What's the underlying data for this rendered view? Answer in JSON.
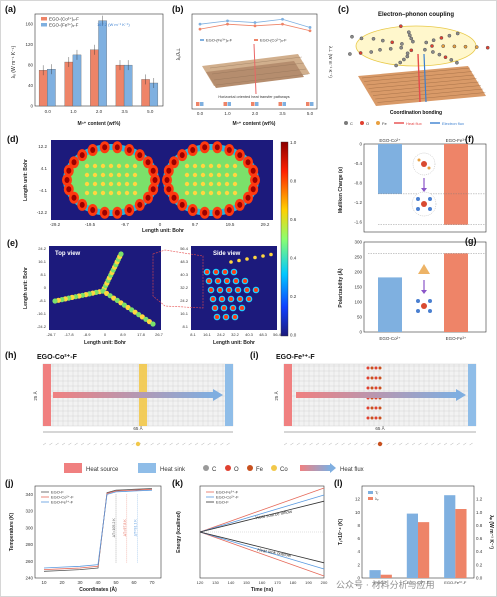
{
  "labels": {
    "a": "(a)",
    "b": "(b)",
    "c": "(c)",
    "d": "(d)",
    "e": "(e)",
    "f": "(f)",
    "g": "(g)",
    "h": "(h)",
    "i": "(i)",
    "j": "(j)",
    "k": "(k)",
    "l": "(l)"
  },
  "panel_a": {
    "legend": [
      "EGO-(Co²⁺)ₓ-F",
      "EGO-(Fe³⁺)ₓ-F"
    ],
    "annotation": "167.2 (W m⁻¹ K⁻¹)",
    "ylabel": "λₓ (W m⁻¹ K⁻¹)",
    "xlabel": "Mⁿ⁺ content (wt%)",
    "yticks": [
      "0",
      "40",
      "80",
      "120",
      "160"
    ],
    "colors": {
      "co": "#ee8468",
      "fe": "#7fb0e0"
    }
  },
  "panel_b": {
    "legend": [
      "EGO-(Fe³⁺)ₓ-F",
      "EGO-(Co²⁺)ₓ-F"
    ],
    "caption": "Horizontal oriented heat transfer pathways",
    "ylabel_left": "λₓ/λ⊥",
    "ylabel_right": "λ⊥ (W m⁻¹ K⁻¹)",
    "xlabel": "Mⁿ⁺ content (wt%)",
    "xticks": [
      "0.0",
      "1.0",
      "2.0",
      "3.5",
      "5.0"
    ]
  },
  "panel_c": {
    "title": "Electron–phonon coupling",
    "subtitle": "Coordination bonding",
    "legend": [
      "C",
      "O",
      "Fe",
      "Heat flux",
      "Electron flux"
    ],
    "colors": {
      "C": "#7a7a7a",
      "O": "#e04030",
      "Fe": "#e8a040",
      "heat": "#e64b4b",
      "electron": "#3a7fd0"
    }
  },
  "panel_d": {
    "ylabel": "Length unit: Bohr",
    "xlabel": "Length unit: Bohr",
    "xticks": [
      "-29.2",
      "-19.5",
      "-9.7",
      "0",
      "9.7",
      "19.5",
      "29.2"
    ],
    "yticks": [
      "12.2",
      "4.1",
      "-4.1",
      "-12.2"
    ],
    "colorbar_ticks": [
      "1.0",
      "0.8",
      "0.6",
      "0.4",
      "0.2",
      "0.0"
    ]
  },
  "panel_e": {
    "top_view": "Top view",
    "side_view": "Side view",
    "ylabel": "Length unit: Bohr",
    "xlabel": "Length unit: Bohr",
    "xlabel2": "Length unit: Bohr",
    "xticks": [
      "-26.7",
      "-17.8",
      "-8.9",
      "0",
      "8.9",
      "17.8",
      "26.7"
    ],
    "yticks": [
      "24.2",
      "16.1",
      "8.1",
      "0",
      "-8.1",
      "-16.1",
      "-24.2"
    ],
    "xticks2": [
      "8.1",
      "16.1",
      "24.2",
      "32.2",
      "40.3",
      "48.3",
      "56.4"
    ],
    "yticks2": [
      "56.4",
      "48.3",
      "40.3",
      "32.2",
      "24.2",
      "16.1",
      "8.1"
    ]
  },
  "panel_f": {
    "ylabel": "Mulliken Charge (e)",
    "yticks": [
      "0",
      "-0.4",
      "-0.8",
      "-1.2",
      "-1.6"
    ],
    "bars": [
      "EGO-Co²⁺",
      "EGO-Fe³⁺"
    ],
    "values": [
      -1.02,
      -1.65
    ]
  },
  "panel_g": {
    "ylabel": "Polarizability (Å)",
    "yticks": [
      "0",
      "50",
      "100",
      "150",
      "200",
      "250",
      "300"
    ],
    "bars": [
      "EGO-Co²⁺",
      "EGO-Fe³⁺"
    ],
    "values": [
      182,
      262
    ]
  },
  "panel_h": {
    "title": "EGO-Co²⁺-F",
    "dim_v": "25 Å",
    "dim_h": "65 Å"
  },
  "panel_i": {
    "title": "EGO-Fe³⁺-F",
    "dim_v": "25 Å",
    "dim_h": "65 Å"
  },
  "legend_row": {
    "items": [
      "Heat source",
      "Heat sink",
      "C",
      "O",
      "Fe",
      "Co",
      "Heat flux"
    ]
  },
  "panel_j": {
    "legend": [
      "EGO-F",
      "EGO-Co²⁺-F",
      "EGO-Fe³⁺-F"
    ],
    "ylabel": "Temperature (K)",
    "xlabel": "Coordinates (Å)",
    "yticks": [
      "240",
      "260",
      "280",
      "300",
      "320",
      "340"
    ],
    "xticks": [
      "10",
      "20",
      "30",
      "40",
      "50",
      "60",
      "70"
    ],
    "annotations": [
      "ΔT=105.2 K",
      "ΔT=97.8 K",
      "ΔT=91.1 K"
    ]
  },
  "panel_k": {
    "legend": [
      "EGO-Fe³⁺-F",
      "EGO-Co²⁺-F",
      "EGO-F"
    ],
    "ylabel": "Energy (kcal/mol)",
    "xlabel": "Time (ns)",
    "xticks": [
      "120",
      "130",
      "140",
      "150",
      "160",
      "170",
      "180",
      "190",
      "200"
    ],
    "labels": [
      "Heat source inflow",
      "Heat sink outflow"
    ]
  },
  "panel_l": {
    "legend": [
      "Tᵣ",
      "λₚ"
    ],
    "ylabel_left": "Tᵣ×10⁻⁴ (K)",
    "ylabel_right": "λₚ (W m⁻¹ K⁻¹)",
    "xticks": [
      "EGO-F",
      "EGO-Co²⁺-F",
      "EGO-Fe³⁺-F"
    ],
    "yticks_left": [
      "0",
      "2",
      "4",
      "6",
      "8",
      "10",
      "12"
    ],
    "yticks_right": [
      "0.0",
      "0.2",
      "0.4",
      "0.6",
      "0.8",
      "1.0",
      "1.2"
    ]
  },
  "watermark": "公众号 · 材料分析与应用",
  "chart_data": [
    {
      "type": "bar",
      "title": "",
      "xlabel": "Mⁿ⁺ content (wt%)",
      "ylabel": "λₓ (W m⁻¹ K⁻¹)",
      "categories": [
        "0.0",
        "1.0",
        "2.0",
        "3.5",
        "5.0"
      ],
      "ylim": [
        0,
        180
      ],
      "series": [
        {
          "name": "EGO-(Co²⁺)ₓ-F",
          "values": [
            70,
            86,
            110,
            80,
            52
          ]
        },
        {
          "name": "EGO-(Fe³⁺)ₓ-F",
          "values": [
            72,
            100,
            167,
            80,
            45
          ]
        }
      ]
    },
    {
      "type": "line",
      "title": "",
      "xlabel": "Mⁿ⁺ content (wt%)",
      "ylabel": "λₓ/λ⊥",
      "categories": [
        "0.0",
        "1.0",
        "2.0",
        "3.5",
        "5.0"
      ],
      "series": [
        {
          "name": "EGO-(Fe³⁺)ₓ-F",
          "values": [
            4.4,
            4.6,
            4.5,
            4.7,
            4.2
          ]
        },
        {
          "name": "EGO-(Co²⁺)ₓ-F",
          "values": [
            4.1,
            4.4,
            4.3,
            4.4,
            4.0
          ]
        }
      ]
    },
    {
      "type": "bar",
      "title": "",
      "ylabel": "Mulliken Charge (e)",
      "categories": [
        "EGO-Co²⁺",
        "EGO-Fe³⁺"
      ],
      "values": [
        -1.02,
        -1.65
      ],
      "ylim": [
        -1.8,
        0
      ]
    },
    {
      "type": "bar",
      "title": "",
      "ylabel": "Polarizability (Å)",
      "categories": [
        "EGO-Co²⁺",
        "EGO-Fe³⁺"
      ],
      "values": [
        182,
        262
      ],
      "ylim": [
        0,
        300
      ]
    },
    {
      "type": "line",
      "title": "",
      "xlabel": "Coordinates (Å)",
      "ylabel": "Temperature (K)",
      "x": [
        10,
        20,
        30,
        40,
        45,
        50,
        60,
        70
      ],
      "ylim": [
        240,
        350
      ],
      "series": [
        {
          "name": "EGO-F",
          "values": [
            248,
            249,
            250,
            252,
            342,
            345,
            346,
            347
          ]
        },
        {
          "name": "EGO-Co²⁺-F",
          "values": [
            250,
            251,
            252,
            254,
            341,
            344,
            345,
            346
          ]
        },
        {
          "name": "EGO-Fe³⁺-F",
          "values": [
            252,
            253,
            254,
            256,
            340,
            343,
            344,
            345
          ]
        }
      ]
    },
    {
      "type": "line",
      "title": "",
      "xlabel": "Time (ns)",
      "ylabel": "Energy (kcal/mol)",
      "x": [
        120,
        140,
        160,
        180,
        200
      ],
      "series": [
        {
          "name": "EGO-Fe³⁺-F",
          "values": [
            0,
            500,
            1000,
            1500,
            2000
          ]
        },
        {
          "name": "EGO-Co²⁺-F",
          "values": [
            0,
            420,
            840,
            1260,
            1680
          ]
        },
        {
          "name": "EGO-F",
          "values": [
            0,
            350,
            700,
            1050,
            1400
          ]
        }
      ]
    },
    {
      "type": "bar",
      "title": "",
      "ylabel": "Tᵣ×10⁻⁴ (K)",
      "categories": [
        "EGO-F",
        "EGO-Co²⁺-F",
        "EGO-Fe³⁺-F"
      ],
      "series": [
        {
          "name": "Tᵣ",
          "values": [
            1.2,
            9.8,
            12.6
          ]
        },
        {
          "name": "λₚ",
          "values": [
            0.05,
            0.85,
            1.05
          ]
        }
      ]
    }
  ]
}
